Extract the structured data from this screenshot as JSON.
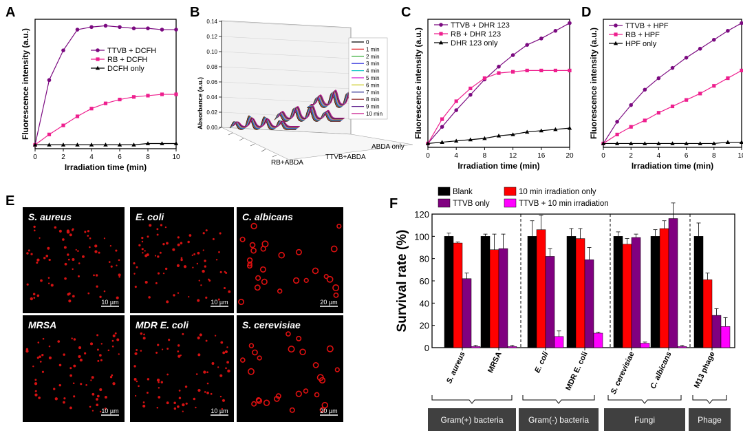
{
  "colors": {
    "purple": "#7b0a80",
    "pink": "#ee1f8e",
    "black": "#000000",
    "blank": "#000000",
    "irr": "#ff0000",
    "ttvb": "#800080",
    "combo": "#ff00ff",
    "group_box": "#404040"
  },
  "panels": {
    "A": {
      "label": "A",
      "xlabel": "Irradiation time (min)",
      "ylabel": "Fluorescence intensity (a.u.)",
      "xticks": [
        "0",
        "2",
        "4",
        "6",
        "8",
        "10"
      ]
    },
    "B": {
      "label": "B",
      "ylabel": "Absorbance (a.u.)",
      "yticks": [
        "0.00",
        "0.02",
        "0.04",
        "0.06",
        "0.08",
        "0.10",
        "0.12",
        "0.14"
      ],
      "legend": [
        "0",
        "1 min",
        "2 min",
        "3 min",
        "4 min",
        "5 min",
        "6 min",
        "7 min",
        "8 min",
        "9 min",
        "10 min"
      ],
      "groups": [
        "RB+ABDA",
        "TTVB+ABDA",
        "ABDA only"
      ]
    },
    "C": {
      "label": "C",
      "xlabel": "Irradiation time (min)",
      "ylabel": "Fluorescence intensity (a.u.)",
      "xticks": [
        "0",
        "4",
        "8",
        "12",
        "16",
        "20"
      ]
    },
    "D": {
      "label": "D",
      "xlabel": "Irradiation time (min)",
      "ylabel": "Fluorescence intensity (a.u.)",
      "xticks": [
        "0",
        "2",
        "4",
        "6",
        "8",
        "10"
      ]
    },
    "E": {
      "label": "E",
      "images": [
        {
          "title": "S. aureus",
          "scale": "10 µm"
        },
        {
          "title": "E. coli",
          "scale": "10 µm"
        },
        {
          "title": "C. albicans",
          "scale": "20 µm"
        },
        {
          "title": "MRSA",
          "scale": "10 µm"
        },
        {
          "title": "MDR E. coli",
          "scale": "10 µm"
        },
        {
          "title": "S. cerevisiae",
          "scale": "20 µm"
        }
      ]
    },
    "F": {
      "label": "F",
      "ylabel": "Survival rate (%)",
      "yticks": [
        "0",
        "20",
        "40",
        "60",
        "80",
        "100",
        "120"
      ],
      "groups": [
        "Gram(+) bacteria",
        "Gram(-) bacteria",
        "Fungi",
        "Phage"
      ]
    }
  },
  "chart_data": [
    {
      "type": "line",
      "panel": "A",
      "xlabel": "Irradiation time (min)",
      "ylabel": "Fluorescence intensity (a.u.)",
      "xlim": [
        0,
        10
      ],
      "ylim": [
        0,
        100
      ],
      "series": [
        {
          "name": "TTVB + DCFH",
          "x": [
            0,
            1,
            2,
            3,
            4,
            5,
            6,
            7,
            8,
            9,
            10
          ],
          "y": [
            3,
            53,
            76,
            92,
            94,
            95,
            94,
            93,
            93,
            92,
            92
          ]
        },
        {
          "name": "RB + DCFH",
          "x": [
            0,
            1,
            2,
            3,
            4,
            5,
            6,
            7,
            8,
            9,
            10
          ],
          "y": [
            3,
            11,
            18,
            25,
            31,
            35,
            38,
            40,
            41,
            42,
            42
          ]
        },
        {
          "name": "DCFH only",
          "x": [
            0,
            1,
            2,
            3,
            4,
            5,
            6,
            7,
            8,
            9,
            10
          ],
          "y": [
            3,
            3,
            3,
            3,
            3,
            3,
            3,
            3,
            4,
            4,
            4
          ]
        }
      ]
    },
    {
      "type": "line",
      "panel": "C",
      "xlabel": "Irradiation time (min)",
      "ylabel": "Fluorescence intensity (a.u.)",
      "xlim": [
        0,
        20
      ],
      "ylim": [
        0,
        100
      ],
      "series": [
        {
          "name": "TTVB + DHR 123",
          "x": [
            0,
            2,
            4,
            6,
            8,
            10,
            12,
            14,
            16,
            18,
            20
          ],
          "y": [
            3,
            16,
            29,
            41,
            53,
            63,
            72,
            80,
            85,
            91,
            97
          ]
        },
        {
          "name": "RB + DHR 123",
          "x": [
            0,
            2,
            4,
            6,
            8,
            10,
            12,
            14,
            16,
            18,
            20
          ],
          "y": [
            3,
            22,
            36,
            46,
            54,
            58,
            59,
            60,
            60,
            60,
            60
          ]
        },
        {
          "name": "DHR 123 only",
          "x": [
            0,
            2,
            4,
            6,
            8,
            10,
            12,
            14,
            16,
            18,
            20
          ],
          "y": [
            3,
            4,
            5,
            6,
            7,
            9,
            10,
            12,
            13,
            14,
            15
          ]
        }
      ]
    },
    {
      "type": "line",
      "panel": "D",
      "xlabel": "Irradiation time (min)",
      "ylabel": "Fluorescence intensity (a.u.)",
      "xlim": [
        0,
        10
      ],
      "ylim": [
        0,
        100
      ],
      "series": [
        {
          "name": "TTVB + HPF",
          "x": [
            0,
            1,
            2,
            3,
            4,
            5,
            6,
            7,
            8,
            9,
            10
          ],
          "y": [
            3,
            20,
            33,
            45,
            54,
            62,
            70,
            77,
            84,
            91,
            97
          ]
        },
        {
          "name": "RB + HPF",
          "x": [
            0,
            1,
            2,
            3,
            4,
            5,
            6,
            7,
            8,
            9,
            10
          ],
          "y": [
            3,
            10,
            16,
            21,
            27,
            32,
            37,
            42,
            48,
            54,
            60
          ]
        },
        {
          "name": "HPF only",
          "x": [
            0,
            1,
            2,
            3,
            4,
            5,
            6,
            7,
            8,
            9,
            10
          ],
          "y": [
            3,
            3,
            3,
            3,
            3,
            3,
            3,
            3,
            3,
            4,
            4
          ]
        }
      ]
    },
    {
      "type": "bar",
      "panel": "F",
      "ylabel": "Survival rate (%)",
      "ylim": [
        0,
        120
      ],
      "categories": [
        "S. aureus",
        "MRSA",
        "E. coli",
        "MDR E. coli",
        "S. cerevisiae",
        "C. albicans",
        "M13 phage"
      ],
      "series": [
        {
          "name": "Blank",
          "values": [
            100,
            100,
            100,
            100,
            100,
            100,
            100
          ],
          "errors": [
            3,
            2,
            14,
            7,
            4,
            6,
            12
          ]
        },
        {
          "name": "10 min irradiation only",
          "values": [
            94,
            88,
            106,
            98,
            93,
            107,
            61
          ],
          "errors": [
            1,
            14,
            13,
            9,
            5,
            7,
            6
          ]
        },
        {
          "name": "TTVB only",
          "values": [
            62,
            89,
            82,
            79,
            99,
            116,
            29
          ],
          "errors": [
            5,
            13,
            7,
            11,
            3,
            14,
            6
          ]
        },
        {
          "name": "TTVB + 10 min irradiation",
          "values": [
            1,
            1,
            10,
            13,
            4,
            1,
            19
          ],
          "errors": [
            1,
            1,
            5,
            1,
            1,
            1,
            8
          ]
        }
      ]
    }
  ]
}
